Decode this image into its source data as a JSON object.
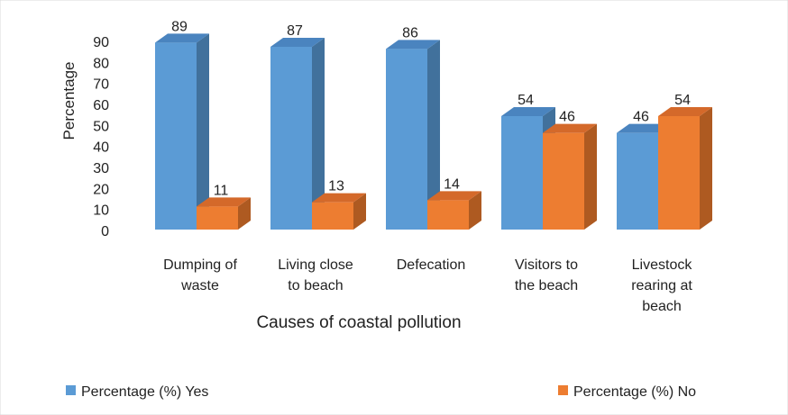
{
  "chart_data": {
    "type": "bar",
    "style": "3d-clustered",
    "categories": [
      [
        "Dumping of",
        "waste"
      ],
      [
        "Living close",
        "to beach"
      ],
      [
        "Defecation"
      ],
      [
        "Visitors to",
        "the beach"
      ],
      [
        "Livestock",
        "rearing  at",
        "beach"
      ]
    ],
    "series": [
      {
        "name": "Percentage (%)   Yes",
        "color": "#5b9bd5",
        "side_color": "#41719c",
        "top_color": "#4a84bf",
        "values": [
          89,
          87,
          86,
          54,
          46
        ]
      },
      {
        "name": "Percentage (%)   No",
        "color": "#ed7d31",
        "side_color": "#ae5a21",
        "top_color": "#d4692a",
        "values": [
          11,
          13,
          14,
          46,
          54
        ]
      }
    ],
    "xlabel": "Causes of coastal pollution",
    "ylabel": "Percentage",
    "ylim": [
      0,
      90
    ],
    "yticks": [
      0,
      10,
      20,
      30,
      40,
      50,
      60,
      70,
      80,
      90
    ],
    "grid": false,
    "legend": "bottom"
  }
}
